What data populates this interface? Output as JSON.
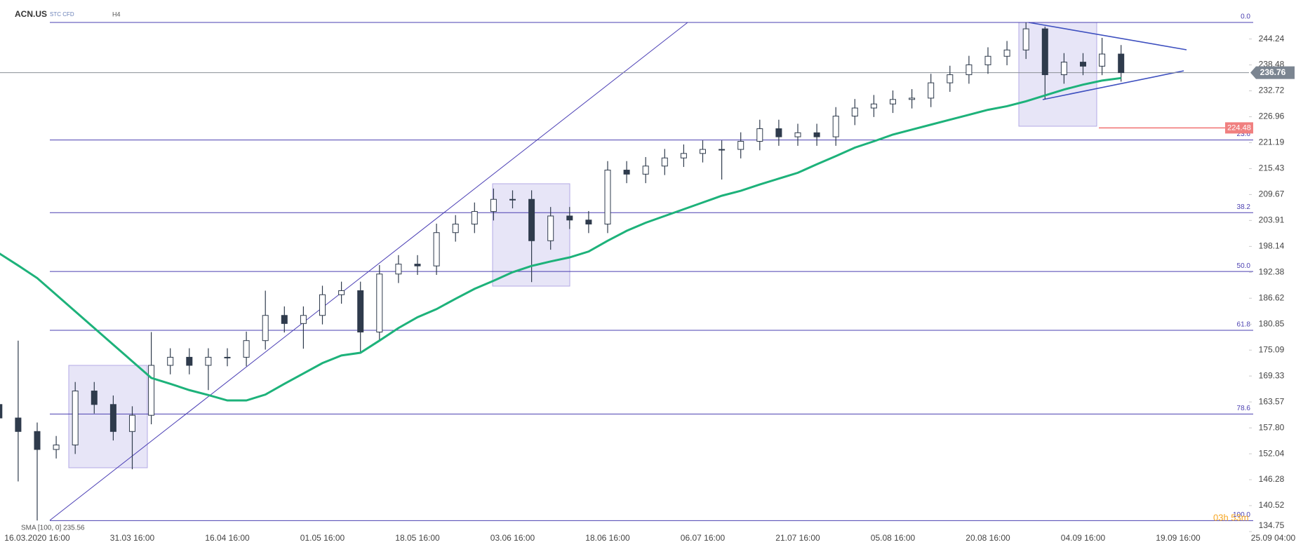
{
  "chart_data": {
    "type": "candlestick",
    "symbol": "ACN.US",
    "instrument": "STC CFD",
    "timeframe": "H4",
    "categories": [
      null,
      null,
      "16.03.2020 16:00",
      null,
      null,
      null,
      null,
      "31.03 16:00",
      null,
      null,
      null,
      null,
      "16.04 16:00",
      null,
      null,
      null,
      null,
      "01.05 16:00",
      null,
      null,
      null,
      null,
      "18.05 16:00",
      null,
      null,
      null,
      null,
      "03.06 16:00",
      null,
      null,
      null,
      null,
      "18.06 16:00",
      null,
      null,
      null,
      null,
      "06.07 16:00",
      null,
      null,
      null,
      null,
      "21.07 16:00",
      null,
      null,
      null,
      null,
      "05.08 16:00",
      null,
      null,
      null,
      null,
      "20.08 16:00",
      null,
      null,
      null,
      null,
      "04.09 16:00",
      null,
      null,
      null,
      null,
      "19.09 16:00",
      null,
      null,
      null,
      null,
      "25.09 04:00"
    ],
    "open": [
      163.0,
      160.0,
      157.0,
      153.0,
      154.0,
      166.0,
      163.0,
      157.0,
      160.6,
      171.7,
      173.5,
      171.7,
      173.5,
      173.5,
      177.2,
      182.8,
      181.0,
      182.8,
      187.4,
      188.3,
      179.1,
      192.0,
      194.2,
      193.8,
      201.2,
      203.1,
      205.9,
      208.6,
      208.6,
      199.4,
      204.9,
      204.0,
      203.1,
      215.1,
      214.2,
      216.0,
      217.8,
      218.8,
      219.7,
      219.7,
      221.5,
      224.3,
      222.5,
      223.4,
      222.5,
      227.1,
      228.9,
      229.8,
      230.8,
      231.1,
      234.5,
      236.3,
      238.5,
      240.4,
      241.8,
      246.5,
      236.3,
      239.1,
      238.2,
      240.9,
      null,
      null,
      null,
      null,
      null,
      null,
      null,
      null
    ],
    "high": [
      165.0,
      177.2,
      159.0,
      156.0,
      168.0,
      168.0,
      165.0,
      162.6,
      179.1,
      175.5,
      175.5,
      175.5,
      175.5,
      179.2,
      188.3,
      184.8,
      184.8,
      189.4,
      190.3,
      190.3,
      194.0,
      196.2,
      196.2,
      203.2,
      205.1,
      207.9,
      211.0,
      210.6,
      210.6,
      206.9,
      206.9,
      206.0,
      217.1,
      217.1,
      218.0,
      219.8,
      220.8,
      221.7,
      221.7,
      223.5,
      226.3,
      226.3,
      225.4,
      225.4,
      229.1,
      230.9,
      231.8,
      232.8,
      233.1,
      236.5,
      238.3,
      240.5,
      242.4,
      243.8,
      247.9,
      247.0,
      241.1,
      241.1,
      244.5,
      242.9,
      null,
      null,
      null,
      null,
      null,
      null,
      null,
      null
    ],
    "low": [
      158.0,
      145.9,
      137.2,
      151.0,
      152.0,
      161.0,
      155.0,
      148.6,
      158.6,
      169.7,
      169.7,
      166.2,
      171.5,
      171.5,
      175.2,
      179.0,
      175.4,
      180.8,
      185.4,
      174.5,
      177.1,
      190.0,
      191.8,
      191.8,
      199.2,
      201.1,
      203.9,
      206.6,
      190.2,
      197.4,
      202.0,
      201.1,
      201.1,
      212.2,
      212.2,
      214.0,
      215.8,
      216.8,
      213.0,
      217.7,
      219.5,
      220.5,
      220.5,
      220.5,
      220.5,
      225.1,
      226.9,
      227.8,
      228.8,
      229.1,
      232.5,
      234.3,
      236.5,
      238.4,
      239.8,
      230.8,
      234.3,
      236.2,
      236.2,
      234.76,
      null,
      null,
      null,
      null,
      null,
      null,
      null,
      null
    ],
    "close": [
      160.0,
      157.0,
      153.0,
      154.0,
      166.0,
      163.0,
      157.0,
      160.6,
      171.7,
      173.5,
      171.7,
      173.5,
      173.5,
      177.2,
      182.8,
      181.0,
      182.8,
      187.4,
      188.3,
      179.1,
      192.0,
      194.2,
      193.8,
      201.2,
      203.1,
      205.9,
      208.6,
      208.6,
      199.4,
      204.9,
      204.0,
      203.1,
      215.1,
      214.2,
      216.0,
      217.8,
      218.8,
      219.7,
      219.7,
      221.5,
      224.3,
      222.5,
      223.4,
      222.5,
      227.1,
      228.9,
      229.8,
      230.8,
      231.1,
      234.5,
      236.3,
      238.5,
      240.4,
      241.8,
      246.5,
      236.3,
      239.1,
      238.2,
      240.9,
      236.76,
      null,
      null,
      null,
      null,
      null,
      null,
      null,
      null
    ],
    "up_color": "#ffffff",
    "down_color": "#2f3b4c",
    "sma": {
      "label": "SMA [100, 0] 235.56",
      "color": "#1db27a",
      "values": [
        196.6,
        193.9,
        191.1,
        187.4,
        183.7,
        180.0,
        176.3,
        172.6,
        168.9,
        167.6,
        166.2,
        165.1,
        163.9,
        163.9,
        165.2,
        167.6,
        169.9,
        172.2,
        173.9,
        174.5,
        177.2,
        180.0,
        182.4,
        184.2,
        186.5,
        188.7,
        190.5,
        192.4,
        193.8,
        194.8,
        195.7,
        197.0,
        199.4,
        201.6,
        203.4,
        204.9,
        206.4,
        207.9,
        209.4,
        210.5,
        211.9,
        213.2,
        214.5,
        216.4,
        218.2,
        220.1,
        221.5,
        223.0,
        224.1,
        225.2,
        226.3,
        227.4,
        228.5,
        229.3,
        230.4,
        231.7,
        233.0,
        234.1,
        235.0,
        235.56,
        null,
        null,
        null,
        null,
        null,
        null,
        null,
        null
      ]
    },
    "ylim": [
      134.44,
      252.91
    ],
    "yticks": [
      244.24,
      238.48,
      232.72,
      226.96,
      221.19,
      215.43,
      209.67,
      203.91,
      198.14,
      192.38,
      186.62,
      180.85,
      175.09,
      169.33,
      163.57,
      {
        "value": 157.8,
        "label": "157.80"
      },
      152.04,
      146.28,
      140.52,
      134.75
    ],
    "fib_levels": [
      {
        "label": "0.0",
        "value": 247.93
      },
      {
        "label": "23.6",
        "value": 221.8
      },
      {
        "label": "38.2",
        "value": 205.63
      },
      {
        "label": "50.0",
        "value": 192.56
      },
      {
        "label": "61.8",
        "value": 179.49
      },
      {
        "label": "78.6",
        "value": 160.89
      },
      {
        "label": "100.0",
        "value": 137.19
      }
    ],
    "last_price": 236.76,
    "alert_price": 224.48,
    "countdown": "03h 53m"
  }
}
